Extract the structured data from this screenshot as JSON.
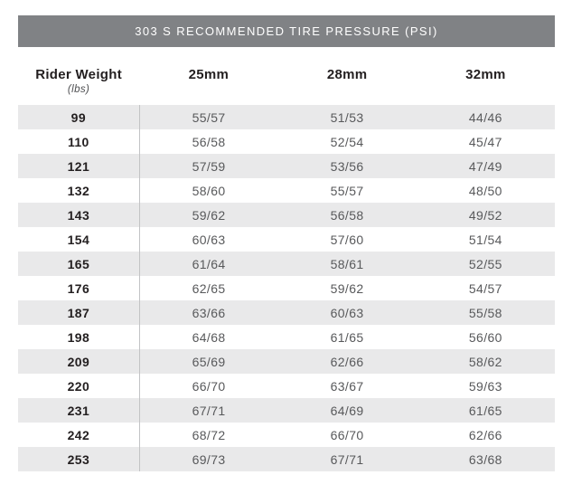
{
  "title": "303 S RECOMMENDED TIRE PRESSURE (PSI)",
  "colors": {
    "title_bar_bg": "#808285",
    "title_bar_text": "#ffffff",
    "row_stripe": "#e9e9ea",
    "column_divider": "#c2c3c5",
    "weight_text": "#231f20",
    "pressure_text": "#58595b"
  },
  "chart_data": {
    "type": "table",
    "title": "303 S RECOMMENDED TIRE PRESSURE (PSI)",
    "header": {
      "weight_label": "Rider Weight",
      "weight_unit": "(lbs)",
      "tire_widths": [
        "25mm",
        "28mm",
        "32mm"
      ]
    },
    "columns": [
      "Rider Weight (lbs)",
      "25mm",
      "28mm",
      "32mm"
    ],
    "rows": [
      {
        "weight": "99",
        "pressures": [
          "55/57",
          "51/53",
          "44/46"
        ]
      },
      {
        "weight": "110",
        "pressures": [
          "56/58",
          "52/54",
          "45/47"
        ]
      },
      {
        "weight": "121",
        "pressures": [
          "57/59",
          "53/56",
          "47/49"
        ]
      },
      {
        "weight": "132",
        "pressures": [
          "58/60",
          "55/57",
          "48/50"
        ]
      },
      {
        "weight": "143",
        "pressures": [
          "59/62",
          "56/58",
          "49/52"
        ]
      },
      {
        "weight": "154",
        "pressures": [
          "60/63",
          "57/60",
          "51/54"
        ]
      },
      {
        "weight": "165",
        "pressures": [
          "61/64",
          "58/61",
          "52/55"
        ]
      },
      {
        "weight": "176",
        "pressures": [
          "62/65",
          "59/62",
          "54/57"
        ]
      },
      {
        "weight": "187",
        "pressures": [
          "63/66",
          "60/63",
          "55/58"
        ]
      },
      {
        "weight": "198",
        "pressures": [
          "64/68",
          "61/65",
          "56/60"
        ]
      },
      {
        "weight": "209",
        "pressures": [
          "65/69",
          "62/66",
          "58/62"
        ]
      },
      {
        "weight": "220",
        "pressures": [
          "66/70",
          "63/67",
          "59/63"
        ]
      },
      {
        "weight": "231",
        "pressures": [
          "67/71",
          "64/69",
          "61/65"
        ]
      },
      {
        "weight": "242",
        "pressures": [
          "68/72",
          "66/70",
          "62/66"
        ]
      },
      {
        "weight": "253",
        "pressures": [
          "69/73",
          "67/71",
          "63/68"
        ]
      }
    ]
  }
}
